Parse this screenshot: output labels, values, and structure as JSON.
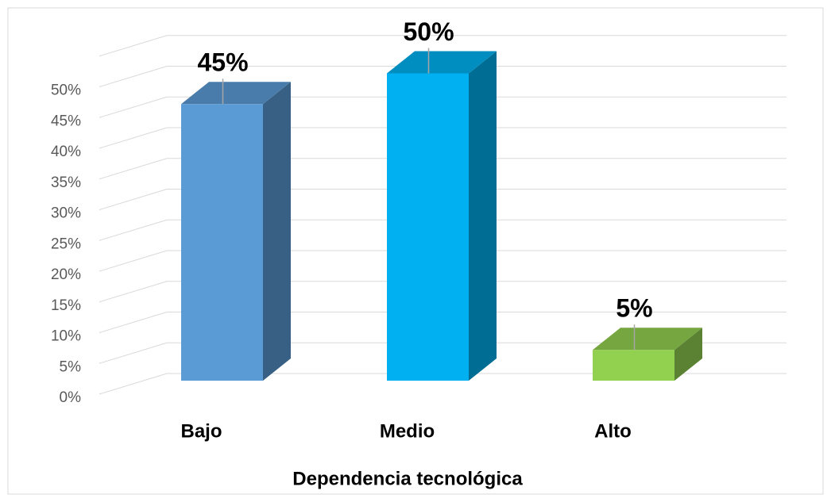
{
  "chart_data": {
    "type": "bar3d",
    "x_label": "Dependencia tecnológica",
    "categories": [
      "Bajo",
      "Medio",
      "Alto"
    ],
    "values": [
      45,
      50,
      5
    ],
    "value_labels": [
      "45%",
      "50%",
      "5%"
    ],
    "colors": [
      "#5b9bd5",
      "#00b0f0",
      "#92d050"
    ],
    "ylim": [
      0,
      55
    ],
    "yticks": [
      {
        "value": 0,
        "label": "0%"
      },
      {
        "value": 5,
        "label": "5%"
      },
      {
        "value": 10,
        "label": "10%"
      },
      {
        "value": 15,
        "label": "15%"
      },
      {
        "value": 20,
        "label": "20%"
      },
      {
        "value": 25,
        "label": "25%"
      },
      {
        "value": 30,
        "label": "30%"
      },
      {
        "value": 35,
        "label": "35%"
      },
      {
        "value": 40,
        "label": "40%"
      },
      {
        "value": 45,
        "label": "45%"
      },
      {
        "value": 50,
        "label": "50%"
      }
    ],
    "grid": true
  }
}
